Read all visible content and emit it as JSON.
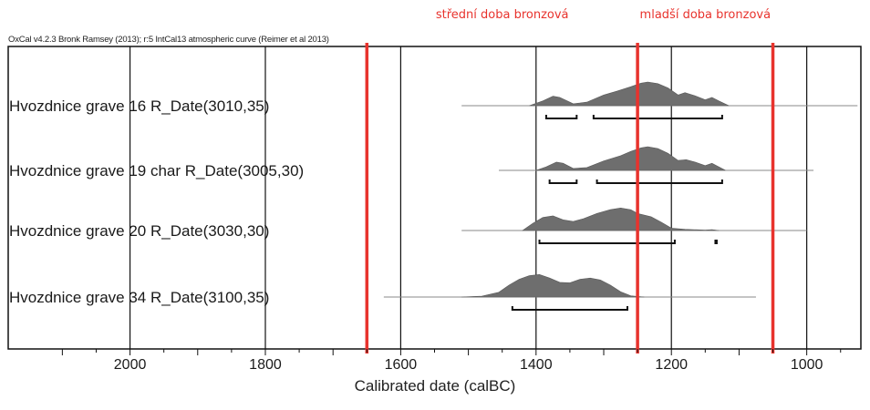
{
  "program_line": "OxCal v4.2.3 Bronk Ramsey (2013); r:5 IntCal13 atmospheric curve (Reimer et al 2013)",
  "periods": [
    {
      "label": "střední doba bronzová",
      "start": 1650,
      "end": 1250
    },
    {
      "label": "mladší doba bronzová",
      "start": 1250,
      "end": 1050
    }
  ],
  "chart_data": {
    "type": "area",
    "title": "",
    "xlabel": "Calibrated date (calBC)",
    "ylabel": "",
    "xlim": [
      2180,
      920
    ],
    "x_reversed": true,
    "grid": "vertical",
    "x_ticks": [
      2000,
      1800,
      1600,
      1400,
      1200,
      1000
    ],
    "x_tick_labels": [
      "2000",
      "1800",
      "1600",
      "1400",
      "1200",
      "1000"
    ],
    "boundaries_calBC": [
      1650,
      1250,
      1050
    ],
    "series": [
      {
        "name": "Hvozdnice grave 16 R_Date(3010,35)",
        "range": [
          1510,
          925
        ],
        "distribution": [
          [
            1410,
            0
          ],
          [
            1390,
            0.2
          ],
          [
            1375,
            0.4
          ],
          [
            1365,
            0.35
          ],
          [
            1345,
            0.08
          ],
          [
            1325,
            0.15
          ],
          [
            1300,
            0.45
          ],
          [
            1280,
            0.62
          ],
          [
            1260,
            0.8
          ],
          [
            1245,
            0.95
          ],
          [
            1235,
            1.0
          ],
          [
            1220,
            0.93
          ],
          [
            1205,
            0.75
          ],
          [
            1190,
            0.45
          ],
          [
            1180,
            0.55
          ],
          [
            1165,
            0.42
          ],
          [
            1150,
            0.25
          ],
          [
            1140,
            0.35
          ],
          [
            1130,
            0.2
          ],
          [
            1115,
            0
          ]
        ],
        "ranges_68_95": [
          [
            1385,
            1340
          ],
          [
            1315,
            1125
          ]
        ]
      },
      {
        "name": "Hvozdnice grave 19 char R_Date(3005,30)",
        "range": [
          1455,
          990
        ],
        "distribution": [
          [
            1400,
            0
          ],
          [
            1385,
            0.15
          ],
          [
            1370,
            0.35
          ],
          [
            1360,
            0.3
          ],
          [
            1345,
            0.08
          ],
          [
            1325,
            0.12
          ],
          [
            1300,
            0.4
          ],
          [
            1275,
            0.62
          ],
          [
            1260,
            0.8
          ],
          [
            1245,
            0.95
          ],
          [
            1235,
            1.0
          ],
          [
            1220,
            0.92
          ],
          [
            1205,
            0.72
          ],
          [
            1190,
            0.42
          ],
          [
            1178,
            0.45
          ],
          [
            1165,
            0.35
          ],
          [
            1150,
            0.2
          ],
          [
            1140,
            0.3
          ],
          [
            1130,
            0.15
          ],
          [
            1120,
            0
          ]
        ],
        "ranges_68_95": [
          [
            1380,
            1340
          ],
          [
            1310,
            1125
          ]
        ]
      },
      {
        "name": "Hvozdnice grave 20 R_Date(3030,30)",
        "range": [
          1510,
          1000
        ],
        "distribution": [
          [
            1420,
            0
          ],
          [
            1405,
            0.3
          ],
          [
            1390,
            0.55
          ],
          [
            1375,
            0.62
          ],
          [
            1360,
            0.45
          ],
          [
            1345,
            0.38
          ],
          [
            1330,
            0.5
          ],
          [
            1310,
            0.72
          ],
          [
            1290,
            0.88
          ],
          [
            1275,
            0.95
          ],
          [
            1260,
            0.88
          ],
          [
            1250,
            0.72
          ],
          [
            1230,
            0.58
          ],
          [
            1215,
            0.35
          ],
          [
            1200,
            0.1
          ],
          [
            1180,
            0.05
          ],
          [
            1150,
            0.02
          ],
          [
            1140,
            0.04
          ],
          [
            1130,
            0
          ]
        ],
        "ranges_68_95": [
          [
            1395,
            1195
          ],
          [
            1135,
            1133
          ]
        ]
      },
      {
        "name": "Hvozdnice grave 34 R_Date(3100,35)",
        "range": [
          1625,
          1075
        ],
        "distribution": [
          [
            1510,
            0
          ],
          [
            1480,
            0.04
          ],
          [
            1455,
            0.2
          ],
          [
            1440,
            0.5
          ],
          [
            1425,
            0.75
          ],
          [
            1410,
            0.9
          ],
          [
            1395,
            0.95
          ],
          [
            1380,
            0.8
          ],
          [
            1365,
            0.62
          ],
          [
            1350,
            0.6
          ],
          [
            1335,
            0.75
          ],
          [
            1320,
            0.8
          ],
          [
            1305,
            0.72
          ],
          [
            1290,
            0.5
          ],
          [
            1275,
            0.22
          ],
          [
            1260,
            0.05
          ],
          [
            1240,
            0
          ]
        ],
        "ranges_68_95": [
          [
            1435,
            1265
          ]
        ]
      }
    ]
  }
}
